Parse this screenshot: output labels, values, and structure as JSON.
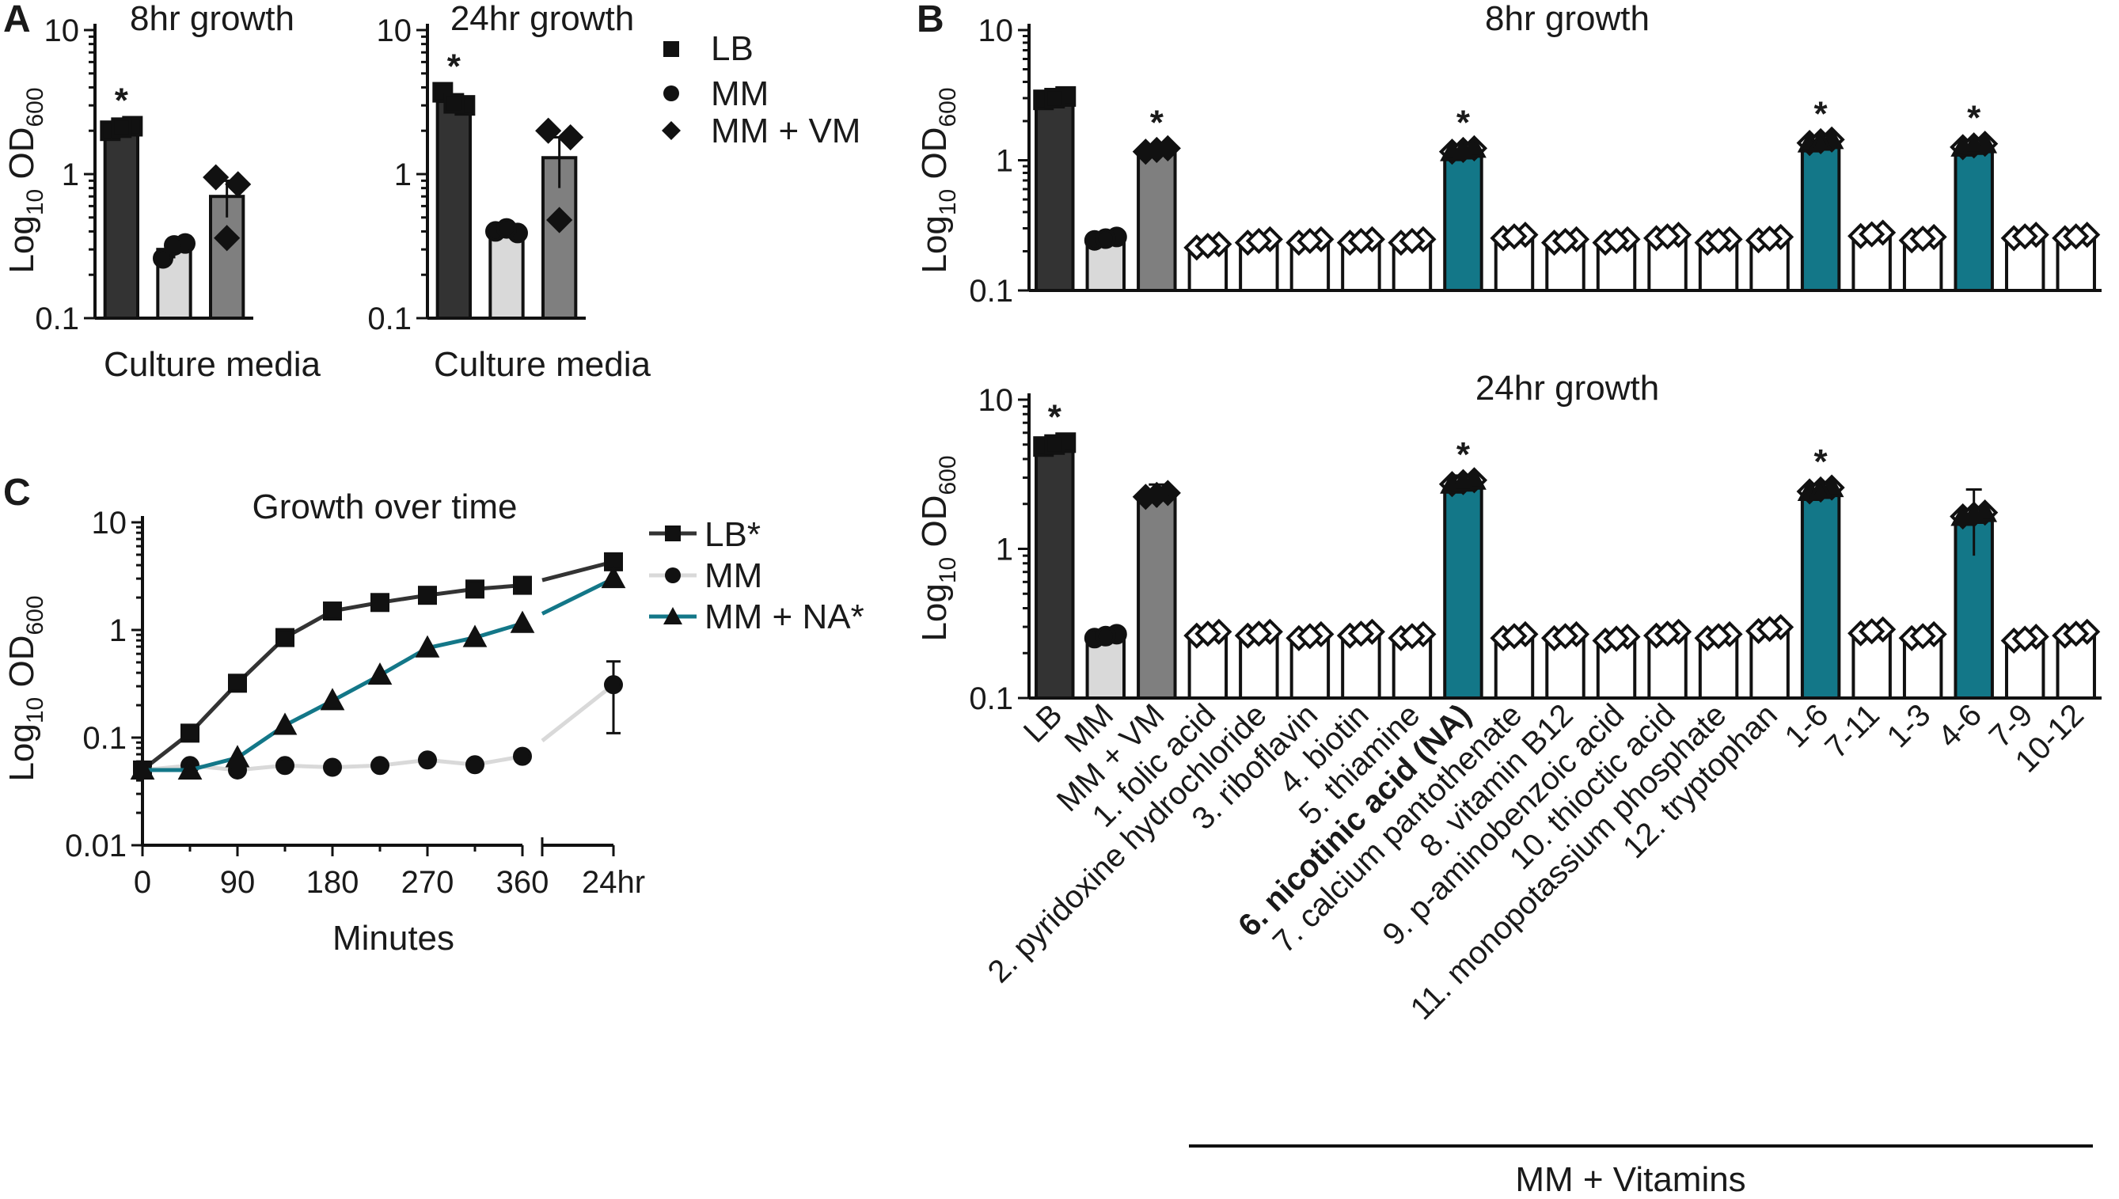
{
  "colors": {
    "LB": "#333333",
    "MM": "#d9d9d9",
    "MM + VM": "#7f7f7f",
    "vitamin": "#ffffff",
    "teal": "#137788"
  },
  "panel_labels": {
    "A": "A",
    "B": "B",
    "C": "C"
  },
  "chart_data": [
    {
      "id": "A1",
      "type": "bar",
      "title": "8hr growth",
      "xlabel": "Culture media",
      "ylabel_prefix": "Log",
      "ylabel_sub1": "10",
      "ylabel_mid": " OD",
      "ylabel_sub2": "600",
      "yscale": "log",
      "ylim": [
        0.1,
        10
      ],
      "yticks": [
        "10",
        "1",
        "0.1"
      ],
      "categories": [
        "LB",
        "MM",
        "MM + VM"
      ],
      "values": [
        2.1,
        0.3,
        0.7
      ],
      "errors": [
        0.08,
        0.04,
        0.2
      ],
      "markers": [
        "square",
        "circle",
        "diamond"
      ],
      "points": [
        [
          2.0,
          2.15,
          2.1
        ],
        [
          0.26,
          0.33,
          0.32
        ],
        [
          0.95,
          0.85,
          0.36
        ]
      ],
      "significant": [
        "*",
        "",
        ""
      ]
    },
    {
      "id": "A2",
      "type": "bar",
      "title": "24hr growth",
      "xlabel": "Culture media",
      "yscale": "log",
      "ylim": [
        0.1,
        10
      ],
      "yticks": [
        "10",
        "1",
        "0.1"
      ],
      "categories": [
        "LB",
        "MM",
        "MM + VM"
      ],
      "values": [
        3.2,
        0.4,
        1.3
      ],
      "errors": [
        0.35,
        0.02,
        0.5
      ],
      "markers": [
        "square",
        "circle",
        "diamond"
      ],
      "points": [
        [
          3.7,
          3.0,
          3.1
        ],
        [
          0.4,
          0.39,
          0.42
        ],
        [
          2.0,
          1.8,
          0.48
        ]
      ],
      "significant": [
        "*",
        "",
        ""
      ],
      "legend": [
        "LB",
        "MM",
        "MM + VM"
      ]
    },
    {
      "id": "B1",
      "type": "bar",
      "title": "8hr growth",
      "ylabel_prefix": "Log",
      "ylabel_sub1": "10",
      "ylabel_mid": " OD",
      "ylabel_sub2": "600",
      "yscale": "log",
      "ylim": [
        0.1,
        10
      ],
      "yticks": [
        "10",
        "1",
        "0.1"
      ],
      "categories": [
        "LB",
        "MM",
        "MM + VM",
        "1. folic acid",
        "2. pyridoxine hydrochloride",
        "3. riboflavin",
        "4. biotin",
        "5. thiamine",
        "6. nicotinic acid (NA)",
        "7. calcium pantothenate",
        "8. vitamin B12",
        "9. p-aminobenzoic acid",
        "10. thioctic acid",
        "11. monopotassium phosphate",
        "12. tryptophan",
        "1-6",
        "7-11",
        "1-3",
        "4-6",
        "7-9",
        "10-12"
      ],
      "values": [
        3.0,
        0.25,
        1.2,
        0.22,
        0.24,
        0.24,
        0.24,
        0.24,
        1.2,
        0.26,
        0.24,
        0.24,
        0.26,
        0.24,
        0.25,
        1.4,
        0.27,
        0.25,
        1.3,
        0.26,
        0.26
      ],
      "errors": [
        0.5,
        0.02,
        0.05,
        0.005,
        0.01,
        0.015,
        0.01,
        0.015,
        0.06,
        0.015,
        0.01,
        0.01,
        0.02,
        0.01,
        0.01,
        0.05,
        0.02,
        0.01,
        0.04,
        0.01,
        0.015
      ],
      "significant": [
        "",
        "",
        "*",
        "",
        "",
        "",
        "",
        "",
        "*",
        "",
        "",
        "",
        "",
        "",
        "",
        "*",
        "",
        "",
        "*",
        "",
        ""
      ]
    },
    {
      "id": "B2",
      "type": "bar",
      "title": "24hr growth",
      "ylabel_prefix": "Log",
      "ylabel_sub1": "10",
      "ylabel_mid": " OD",
      "ylabel_sub2": "600",
      "yscale": "log",
      "ylim": [
        0.1,
        10
      ],
      "yticks": [
        "10",
        "1",
        "0.1"
      ],
      "categories": [
        "LB",
        "MM",
        "MM + VM",
        "1. folic acid",
        "2. pyridoxine hydrochloride",
        "3. riboflavin",
        "4. biotin",
        "5. thiamine",
        "6. nicotinic acid (NA)",
        "7. calcium pantothenate",
        "8. vitamin B12",
        "9. p-aminobenzoic acid",
        "10. thioctic acid",
        "11. monopotassium phosphate",
        "12. tryptophan",
        "1-6",
        "7-11",
        "1-3",
        "4-6",
        "7-9",
        "10-12"
      ],
      "values": [
        5.0,
        0.26,
        2.3,
        0.27,
        0.27,
        0.26,
        0.27,
        0.26,
        2.8,
        0.26,
        0.26,
        0.25,
        0.27,
        0.26,
        0.29,
        2.5,
        0.28,
        0.26,
        1.7,
        0.25,
        0.27
      ],
      "errors": [
        0.4,
        0.02,
        0.4,
        0.01,
        0.01,
        0.01,
        0.02,
        0.01,
        0.3,
        0.01,
        0.01,
        0.01,
        0.01,
        0.01,
        0.01,
        0.06,
        0.02,
        0.01,
        0.8,
        0.015,
        0.015
      ],
      "significant": [
        "*",
        "",
        "",
        "",
        "",
        "",
        "",
        "",
        "*",
        "",
        "",
        "",
        "",
        "",
        "",
        "*",
        "",
        "",
        "",
        "",
        ""
      ],
      "group_label": "MM + Vitamins"
    },
    {
      "id": "C",
      "type": "line",
      "title": "Growth over time",
      "xlabel": "Minutes",
      "ylabel_prefix": "Log",
      "ylabel_sub1": "10",
      "ylabel_mid": " OD",
      "ylabel_sub2": "600",
      "yscale": "log",
      "ylim": [
        0.01,
        10
      ],
      "yticks": [
        "10",
        "1",
        "0.1",
        "0.01"
      ],
      "xticks": [
        "0",
        "90",
        "180",
        "270",
        "360",
        "24hr"
      ],
      "x": [
        0,
        45,
        90,
        135,
        180,
        225,
        270,
        315,
        360
      ],
      "x_final_label": "24hr",
      "series": [
        {
          "name": "LB",
          "legend": "LB*",
          "marker": "square",
          "color": "#333333",
          "values": [
            0.05,
            0.11,
            0.32,
            0.85,
            1.5,
            1.8,
            2.1,
            2.4,
            2.6
          ],
          "final": 4.3,
          "final_err": 0
        },
        {
          "name": "MM",
          "legend": "MM",
          "marker": "circle",
          "color": "#d9d9d9",
          "values": [
            0.05,
            0.055,
            0.05,
            0.055,
            0.053,
            0.055,
            0.062,
            0.056,
            0.067
          ],
          "final": 0.31,
          "final_err": 0.2
        },
        {
          "name": "MM + NA",
          "legend": "MM + NA*",
          "marker": "triangle",
          "color": "#137788",
          "values": [
            0.05,
            0.05,
            0.065,
            0.13,
            0.22,
            0.38,
            0.68,
            0.85,
            1.15
          ],
          "final": 3.0,
          "final_err": 0
        }
      ]
    }
  ]
}
